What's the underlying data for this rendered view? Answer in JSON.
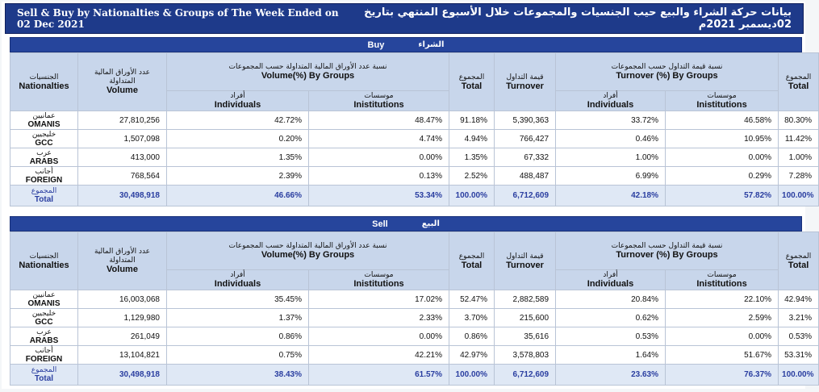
{
  "title": {
    "en": "Sell & Buy by Nationalties & Groups of The Week Ended on 02 Dec 2021",
    "ar": "بيانات حركة الشراء والبيع حيب الجنسيات والمجموعات خلال الأسبوع المنتهي بتاريخ 02ديسمبر 2021م"
  },
  "headers": {
    "nationalties_ar": "الجنسيات",
    "nationalties_en": "Nationalties",
    "volume_ar": "عدد الأوراق المالية المتداولة",
    "volume_en": "Volume",
    "volume_groups_ar": "نسبة عدد الأوراق المالية المتداولة حسب المجموعات",
    "volume_groups_en": "Volume(%) By Groups",
    "individuals_ar": "أفراد",
    "individuals_en": "Individuals",
    "institutions_ar": "موسسات",
    "institutions_en": "Inistitutions",
    "total_ar": "المجموع",
    "total_en": "Total",
    "turnover_ar": "قيمة التداول",
    "turnover_en": "Turnover",
    "turnover_groups_ar": "نسبة قيمة التداول حسب المجموعات",
    "turnover_groups_en": "Turnover (%) By Groups"
  },
  "buy": {
    "label_en": "Buy",
    "label_ar": "الشراء",
    "rows": [
      {
        "nat_ar": "عمانيين",
        "nat_en": "OMANIS",
        "volume": "27,810,256",
        "vol_ind": "42.72%",
        "vol_inst": "48.47%",
        "vol_total": "91.18%",
        "turnover": "5,390,363",
        "to_ind": "33.72%",
        "to_inst": "46.58%",
        "to_total": "80.30%"
      },
      {
        "nat_ar": "خليجيين",
        "nat_en": "GCC",
        "volume": "1,507,098",
        "vol_ind": "0.20%",
        "vol_inst": "4.74%",
        "vol_total": "4.94%",
        "turnover": "766,427",
        "to_ind": "0.46%",
        "to_inst": "10.95%",
        "to_total": "11.42%"
      },
      {
        "nat_ar": "عرب",
        "nat_en": "ARABS",
        "volume": "413,000",
        "vol_ind": "1.35%",
        "vol_inst": "0.00%",
        "vol_total": "1.35%",
        "turnover": "67,332",
        "to_ind": "1.00%",
        "to_inst": "0.00%",
        "to_total": "1.00%"
      },
      {
        "nat_ar": "أجانب",
        "nat_en": "FOREIGN",
        "volume": "768,564",
        "vol_ind": "2.39%",
        "vol_inst": "0.13%",
        "vol_total": "2.52%",
        "turnover": "488,487",
        "to_ind": "6.99%",
        "to_inst": "0.29%",
        "to_total": "7.28%"
      }
    ],
    "total": {
      "nat_ar": "المجموع",
      "nat_en": "Total",
      "volume": "30,498,918",
      "vol_ind": "46.66%",
      "vol_inst": "53.34%",
      "vol_total": "100.00%",
      "turnover": "6,712,609",
      "to_ind": "42.18%",
      "to_inst": "57.82%",
      "to_total": "100.00%"
    }
  },
  "sell": {
    "label_en": "Sell",
    "label_ar": "البيع",
    "rows": [
      {
        "nat_ar": "عمانيين",
        "nat_en": "OMANIS",
        "volume": "16,003,068",
        "vol_ind": "35.45%",
        "vol_inst": "17.02%",
        "vol_total": "52.47%",
        "turnover": "2,882,589",
        "to_ind": "20.84%",
        "to_inst": "22.10%",
        "to_total": "42.94%"
      },
      {
        "nat_ar": "خليجيين",
        "nat_en": "GCC",
        "volume": "1,129,980",
        "vol_ind": "1.37%",
        "vol_inst": "2.33%",
        "vol_total": "3.70%",
        "turnover": "215,600",
        "to_ind": "0.62%",
        "to_inst": "2.59%",
        "to_total": "3.21%"
      },
      {
        "nat_ar": "عرب",
        "nat_en": "ARABS",
        "volume": "261,049",
        "vol_ind": "0.86%",
        "vol_inst": "0.00%",
        "vol_total": "0.86%",
        "turnover": "35,616",
        "to_ind": "0.53%",
        "to_inst": "0.00%",
        "to_total": "0.53%"
      },
      {
        "nat_ar": "أجانب",
        "nat_en": "FOREIGN",
        "volume": "13,104,821",
        "vol_ind": "0.75%",
        "vol_inst": "42.21%",
        "vol_total": "42.97%",
        "turnover": "3,578,803",
        "to_ind": "1.64%",
        "to_inst": "51.67%",
        "to_total": "53.31%"
      }
    ],
    "total": {
      "nat_ar": "المجموع",
      "nat_en": "Total",
      "volume": "30,498,918",
      "vol_ind": "38.43%",
      "vol_inst": "61.57%",
      "vol_total": "100.00%",
      "turnover": "6,712,609",
      "to_ind": "23.63%",
      "to_inst": "76.37%",
      "to_total": "100.00%"
    }
  },
  "colors": {
    "title_bg": "#1e3a8a",
    "section_bg": "#26459c",
    "header_bg": "#c8d6eb",
    "total_bg": "#dfe8f5",
    "total_text": "#2a3ea0"
  }
}
